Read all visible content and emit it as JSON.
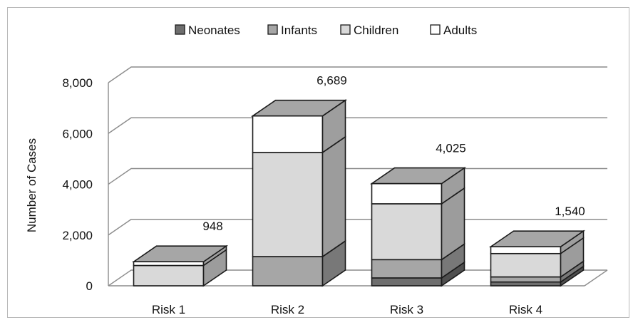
{
  "colors": {
    "neonates": "#6e6e6e",
    "infants": "#a6a6a6",
    "children": "#d9d9d9",
    "adults": "#ffffff",
    "gridline": "#8c8c8c",
    "outline": "#1a1a1a"
  },
  "chart_data": {
    "type": "bar",
    "stacked": true,
    "three_d": true,
    "title": "",
    "xlabel": "",
    "ylabel": "Number of Cases",
    "ylim": [
      0,
      8000
    ],
    "yticks": [
      "0",
      "2,000",
      "4,000",
      "6,000",
      "8,000"
    ],
    "ytick_values": [
      0,
      2000,
      4000,
      6000,
      8000
    ],
    "grid": true,
    "legend_position": "top",
    "categories": [
      "Risk 1",
      "Risk 2",
      "Risk 3",
      "Risk 4"
    ],
    "series": [
      {
        "name": "Neonates",
        "values": [
          0,
          0,
          310,
          150
        ]
      },
      {
        "name": "Infants",
        "values": [
          0,
          1150,
          720,
          200
        ]
      },
      {
        "name": "Children",
        "values": [
          800,
          4100,
          2200,
          920
        ]
      },
      {
        "name": "Adults",
        "values": [
          148,
          1439,
          795,
          270
        ]
      }
    ],
    "totals": [
      948,
      6689,
      4025,
      1540
    ],
    "total_labels": [
      "948",
      "6,689",
      "4,025",
      "1,540"
    ]
  }
}
